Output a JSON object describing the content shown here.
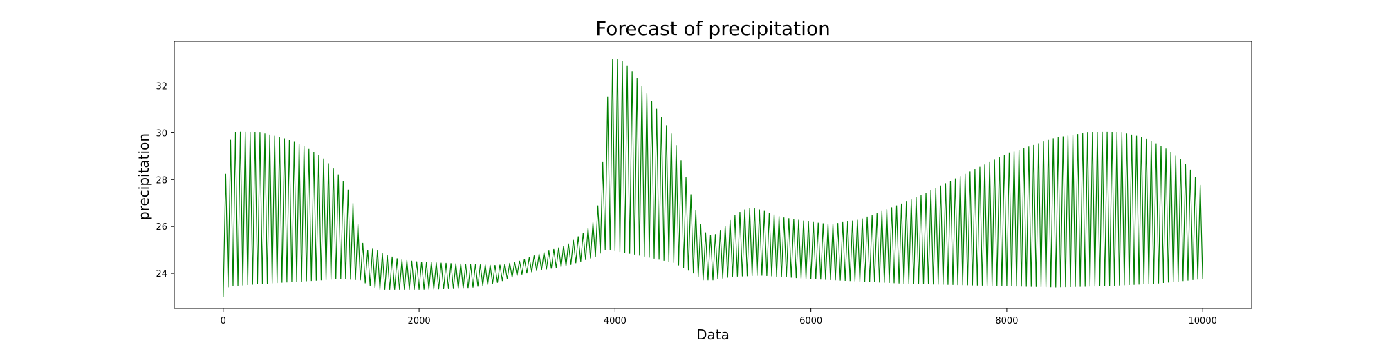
{
  "chart_data": {
    "type": "line",
    "title": "Forecast of precipitation",
    "xlabel": "Data",
    "ylabel": "precipitation",
    "xlim": [
      -500,
      10500
    ],
    "ylim": [
      22.5,
      33.9
    ],
    "xticks": [
      0,
      2000,
      4000,
      6000,
      8000,
      10000
    ],
    "xtick_labels": [
      "0",
      "2000",
      "4000",
      "6000",
      "8000",
      "10000"
    ],
    "yticks": [
      24,
      26,
      28,
      30,
      32
    ],
    "ytick_labels": [
      "24",
      "26",
      "28",
      "30",
      "32"
    ],
    "grid": false,
    "legend": "none",
    "color": "#008000",
    "oscillation_period": 50,
    "series": [
      {
        "role": "upper_envelope",
        "x": [
          0,
          50,
          100,
          150,
          200,
          400,
          600,
          800,
          1000,
          1100,
          1200,
          1300,
          1350,
          1400,
          1450,
          1500,
          1550,
          1600,
          1700,
          1800,
          2000,
          2500,
          2800,
          3000,
          3200,
          3500,
          3700,
          3800,
          3850,
          3900,
          3950,
          4000,
          4100,
          4200,
          4400,
          4600,
          4700,
          4800,
          4900,
          5000,
          5100,
          5200,
          5300,
          5400,
          5500,
          5700,
          6000,
          6200,
          6500,
          7000,
          7500,
          8000,
          8500,
          8800,
          9000,
          9200,
          9400,
          9600,
          9800,
          9900,
          10000
        ],
        "values": [
          27.1,
          29.4,
          30.0,
          30.05,
          30.05,
          30.0,
          29.8,
          29.5,
          29.0,
          28.6,
          28.1,
          27.4,
          26.6,
          25.6,
          25.0,
          25.0,
          25.1,
          24.9,
          24.75,
          24.6,
          24.5,
          24.4,
          24.35,
          24.5,
          24.8,
          25.2,
          25.8,
          26.3,
          27.5,
          30.0,
          33.1,
          33.2,
          33.0,
          32.5,
          31.2,
          29.8,
          28.5,
          27.0,
          25.8,
          25.6,
          25.9,
          26.4,
          26.7,
          26.8,
          26.7,
          26.4,
          26.2,
          26.1,
          26.3,
          27.1,
          28.1,
          29.1,
          29.8,
          30.0,
          30.05,
          30.0,
          29.8,
          29.4,
          28.8,
          28.3,
          27.6
        ]
      },
      {
        "role": "lower_envelope",
        "x": [
          0,
          20,
          50,
          100,
          400,
          800,
          1200,
          1400,
          1500,
          1600,
          1800,
          2000,
          2500,
          2800,
          3000,
          3200,
          3500,
          3800,
          3900,
          4000,
          4200,
          4600,
          4800,
          4900,
          5000,
          5200,
          5500,
          6000,
          7000,
          8000,
          8500,
          9000,
          9500,
          10000
        ],
        "values": [
          23.0,
          23.25,
          23.4,
          23.45,
          23.55,
          23.65,
          23.75,
          23.7,
          23.45,
          23.3,
          23.3,
          23.3,
          23.35,
          23.6,
          23.9,
          24.1,
          24.3,
          24.7,
          25.0,
          24.95,
          24.8,
          24.45,
          24.0,
          23.7,
          23.7,
          23.85,
          23.9,
          23.75,
          23.55,
          23.45,
          23.4,
          23.45,
          23.55,
          23.75
        ]
      }
    ]
  }
}
